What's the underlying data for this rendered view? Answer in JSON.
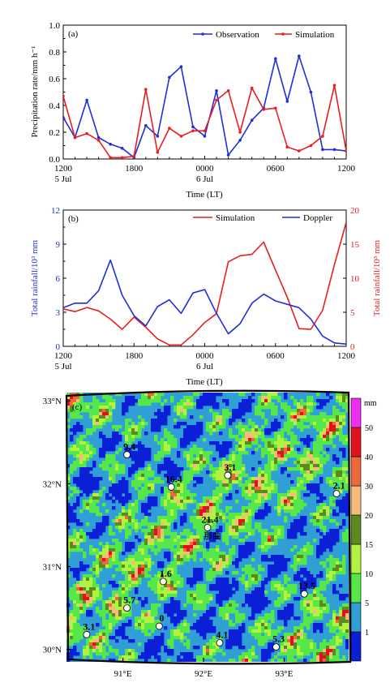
{
  "chart_data": [
    {
      "type": "line",
      "panel": "(a)",
      "ylabel": "Precipitation rate/mm h⁻¹",
      "xlabel": "Time (LT)",
      "x_ticks": [
        "1200",
        "1800",
        "0000",
        "0600",
        "1200"
      ],
      "x_subticks": [
        "5 Jul",
        "",
        "6 Jul",
        "",
        ""
      ],
      "xlim": [
        0,
        24
      ],
      "ylim": [
        0,
        1.0
      ],
      "y_ticks": [
        "0.0",
        "0.2",
        "0.4",
        "0.6",
        "0.8",
        "1.0"
      ],
      "legend_position": "top-right",
      "series": [
        {
          "name": "Observation",
          "color": "#1f2fd6",
          "x": [
            0,
            1,
            2,
            3,
            4,
            5,
            6,
            7,
            8,
            9,
            10,
            11,
            12,
            13,
            14,
            15,
            16,
            17,
            18,
            19,
            20,
            21,
            22,
            23,
            24
          ],
          "values": [
            0.31,
            0.16,
            0.44,
            0.16,
            0.11,
            0.08,
            0.01,
            0.25,
            0.17,
            0.61,
            0.69,
            0.24,
            0.17,
            0.51,
            0.03,
            0.14,
            0.29,
            0.38,
            0.75,
            0.43,
            0.77,
            0.5,
            0.07,
            0.07,
            0.06
          ]
        },
        {
          "name": "Simulation",
          "color": "#e81f1f",
          "x": [
            0,
            1,
            2,
            3,
            4,
            5,
            6,
            7,
            8,
            9,
            10,
            11,
            12,
            13,
            14,
            15,
            16,
            17,
            18,
            19,
            20,
            21,
            22,
            23,
            24
          ],
          "values": [
            0.47,
            0.16,
            0.19,
            0.14,
            0.01,
            0.01,
            0.02,
            0.52,
            0.05,
            0.23,
            0.17,
            0.21,
            0.21,
            0.44,
            0.51,
            0.2,
            0.53,
            0.37,
            0.38,
            0.09,
            0.06,
            0.1,
            0.17,
            0.55,
            0.06
          ]
        }
      ]
    },
    {
      "type": "line",
      "panel": "(b)",
      "ylabel": "Total rainfall/10³ mm",
      "y2label": "Total rainfall/10³ mm",
      "xlabel": "Time (LT)",
      "x_ticks": [
        "1200",
        "1800",
        "0000",
        "0600",
        "1200"
      ],
      "x_subticks": [
        "5 Jul",
        "",
        "6 Jul",
        "",
        ""
      ],
      "xlim": [
        0,
        24
      ],
      "ylim": [
        0,
        12
      ],
      "y_ticks": [
        "0",
        "3",
        "6",
        "9",
        "12"
      ],
      "y2lim": [
        0,
        20
      ],
      "y2_ticks": [
        "0",
        "5",
        "10",
        "15",
        "20"
      ],
      "left_axis_color": "#1f2fd6",
      "right_axis_color": "#e81f1f",
      "legend_position": "top-right",
      "series": [
        {
          "name": "Simulation",
          "axis": "right",
          "color": "#e81f1f",
          "x": [
            0,
            1,
            2,
            3,
            4,
            5,
            6,
            7,
            8,
            9,
            10,
            11,
            12,
            13,
            14,
            15,
            16,
            17,
            18,
            19,
            20,
            21,
            22,
            23,
            24
          ],
          "values": [
            5.5,
            5.1,
            5.7,
            5.2,
            4.0,
            2.5,
            4.3,
            2.8,
            1.1,
            0.2,
            0.2,
            1.7,
            3.5,
            4.8,
            12.4,
            13.3,
            13.5,
            15.3,
            11.2,
            7.2,
            2.6,
            2.5,
            5.3,
            12.0,
            18.2
          ]
        },
        {
          "name": "Doppler",
          "axis": "left",
          "color": "#1f2fd6",
          "x": [
            0,
            1,
            2,
            3,
            4,
            5,
            6,
            7,
            8,
            9,
            10,
            11,
            12,
            13,
            14,
            15,
            16,
            17,
            18,
            19,
            20,
            21,
            22,
            23,
            24
          ],
          "values": [
            3.4,
            3.8,
            3.8,
            4.9,
            7.6,
            4.5,
            2.7,
            1.8,
            3.5,
            4.1,
            2.9,
            4.7,
            5.0,
            2.9,
            1.1,
            2.0,
            3.8,
            4.6,
            4.0,
            3.7,
            3.4,
            2.4,
            0.9,
            0.3,
            0.2
          ]
        }
      ]
    },
    {
      "type": "heatmap",
      "panel": "(c)",
      "x_ticks": [
        "91°E",
        "92°E",
        "93°E"
      ],
      "y_ticks": [
        "33°N",
        "32°N",
        "31°N",
        "30°N"
      ],
      "lon_range": [
        90.3,
        93.8
      ],
      "lat_range": [
        29.85,
        33.1
      ],
      "colorbar_unit": "mm",
      "colorbar_levels": [
        "1",
        "5",
        "10",
        "15",
        "20",
        "30",
        "40",
        "50"
      ],
      "colorbar_colors": [
        "#0a1fd6",
        "#2f9fd6",
        "#56e84a",
        "#b2f240",
        "#5c8a1e",
        "#f6bb78",
        "#ea6a3b",
        "#e0121a",
        "#ee2ef0"
      ],
      "stations": [
        {
          "value": "9.4",
          "lon": 91.05,
          "lat": 32.35
        },
        {
          "value": "16.4",
          "lon": 91.6,
          "lat": 31.96
        },
        {
          "value": "3.1",
          "lon": 92.3,
          "lat": 32.1
        },
        {
          "value": "2.1",
          "lon": 93.65,
          "lat": 31.88
        },
        {
          "value": "21.4",
          "lon": 92.05,
          "lat": 31.47,
          "name": "那曲"
        },
        {
          "value": "1.6",
          "lon": 91.5,
          "lat": 30.82
        },
        {
          "value": "5.7",
          "lon": 91.05,
          "lat": 30.5
        },
        {
          "value": "13.5",
          "lon": 93.25,
          "lat": 30.67
        },
        {
          "value": "3.1",
          "lon": 90.55,
          "lat": 30.18
        },
        {
          "value": "0",
          "lon": 91.45,
          "lat": 30.28
        },
        {
          "value": "4.1",
          "lon": 92.2,
          "lat": 30.08
        },
        {
          "value": "5.3",
          "lon": 92.9,
          "lat": 30.03
        }
      ]
    }
  ]
}
